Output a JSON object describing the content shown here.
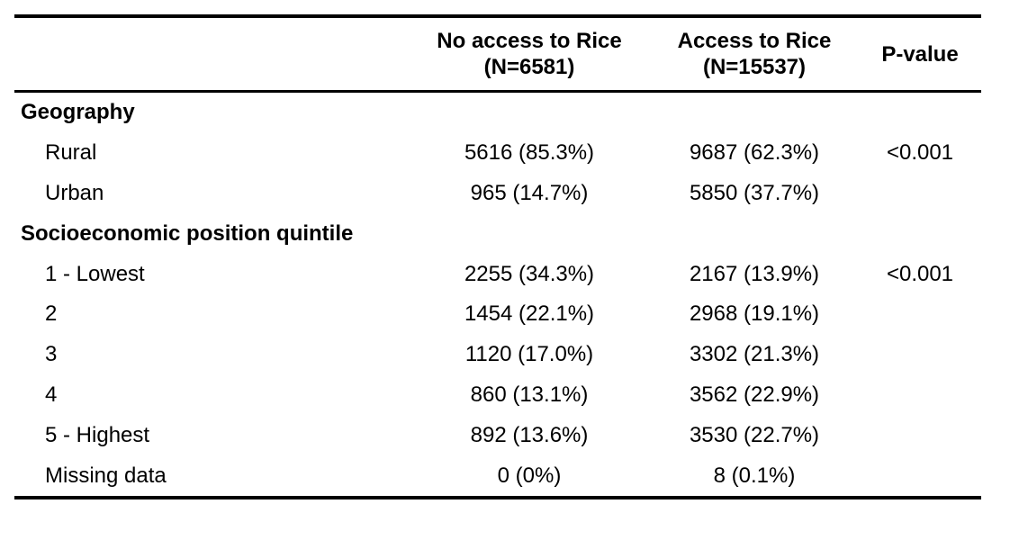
{
  "table": {
    "headers": {
      "col1_line1": "No access to Rice",
      "col1_line2": "(N=6581)",
      "col2_line1": "Access to Rice",
      "col2_line2": "(N=15537)",
      "col3": "P-value"
    },
    "rows": [
      {
        "label": "Geography",
        "col1": "",
        "col2": "",
        "pvalue": ""
      },
      {
        "label": "Rural",
        "col1": "5616 (85.3%)",
        "col2": "9687 (62.3%)",
        "pvalue": "<0.001"
      },
      {
        "label": "Urban",
        "col1": "965 (14.7%)",
        "col2": "5850 (37.7%)",
        "pvalue": ""
      },
      {
        "label": "Socioeconomic position quintile",
        "col1": "",
        "col2": "",
        "pvalue": ""
      },
      {
        "label": "1 - Lowest",
        "col1": "2255 (34.3%)",
        "col2": "2167 (13.9%)",
        "pvalue": "<0.001"
      },
      {
        "label": "2",
        "col1": "1454 (22.1%)",
        "col2": "2968 (19.1%)",
        "pvalue": ""
      },
      {
        "label": "3",
        "col1": "1120 (17.0%)",
        "col2": "3302 (21.3%)",
        "pvalue": ""
      },
      {
        "label": "4",
        "col1": "860 (13.1%)",
        "col2": "3562 (22.9%)",
        "pvalue": ""
      },
      {
        "label": "5 - Highest",
        "col1": "892 (13.6%)",
        "col2": "3530 (22.7%)",
        "pvalue": ""
      },
      {
        "label": "Missing data",
        "col1": "0 (0%)",
        "col2": "8 (0.1%)",
        "pvalue": ""
      }
    ]
  }
}
